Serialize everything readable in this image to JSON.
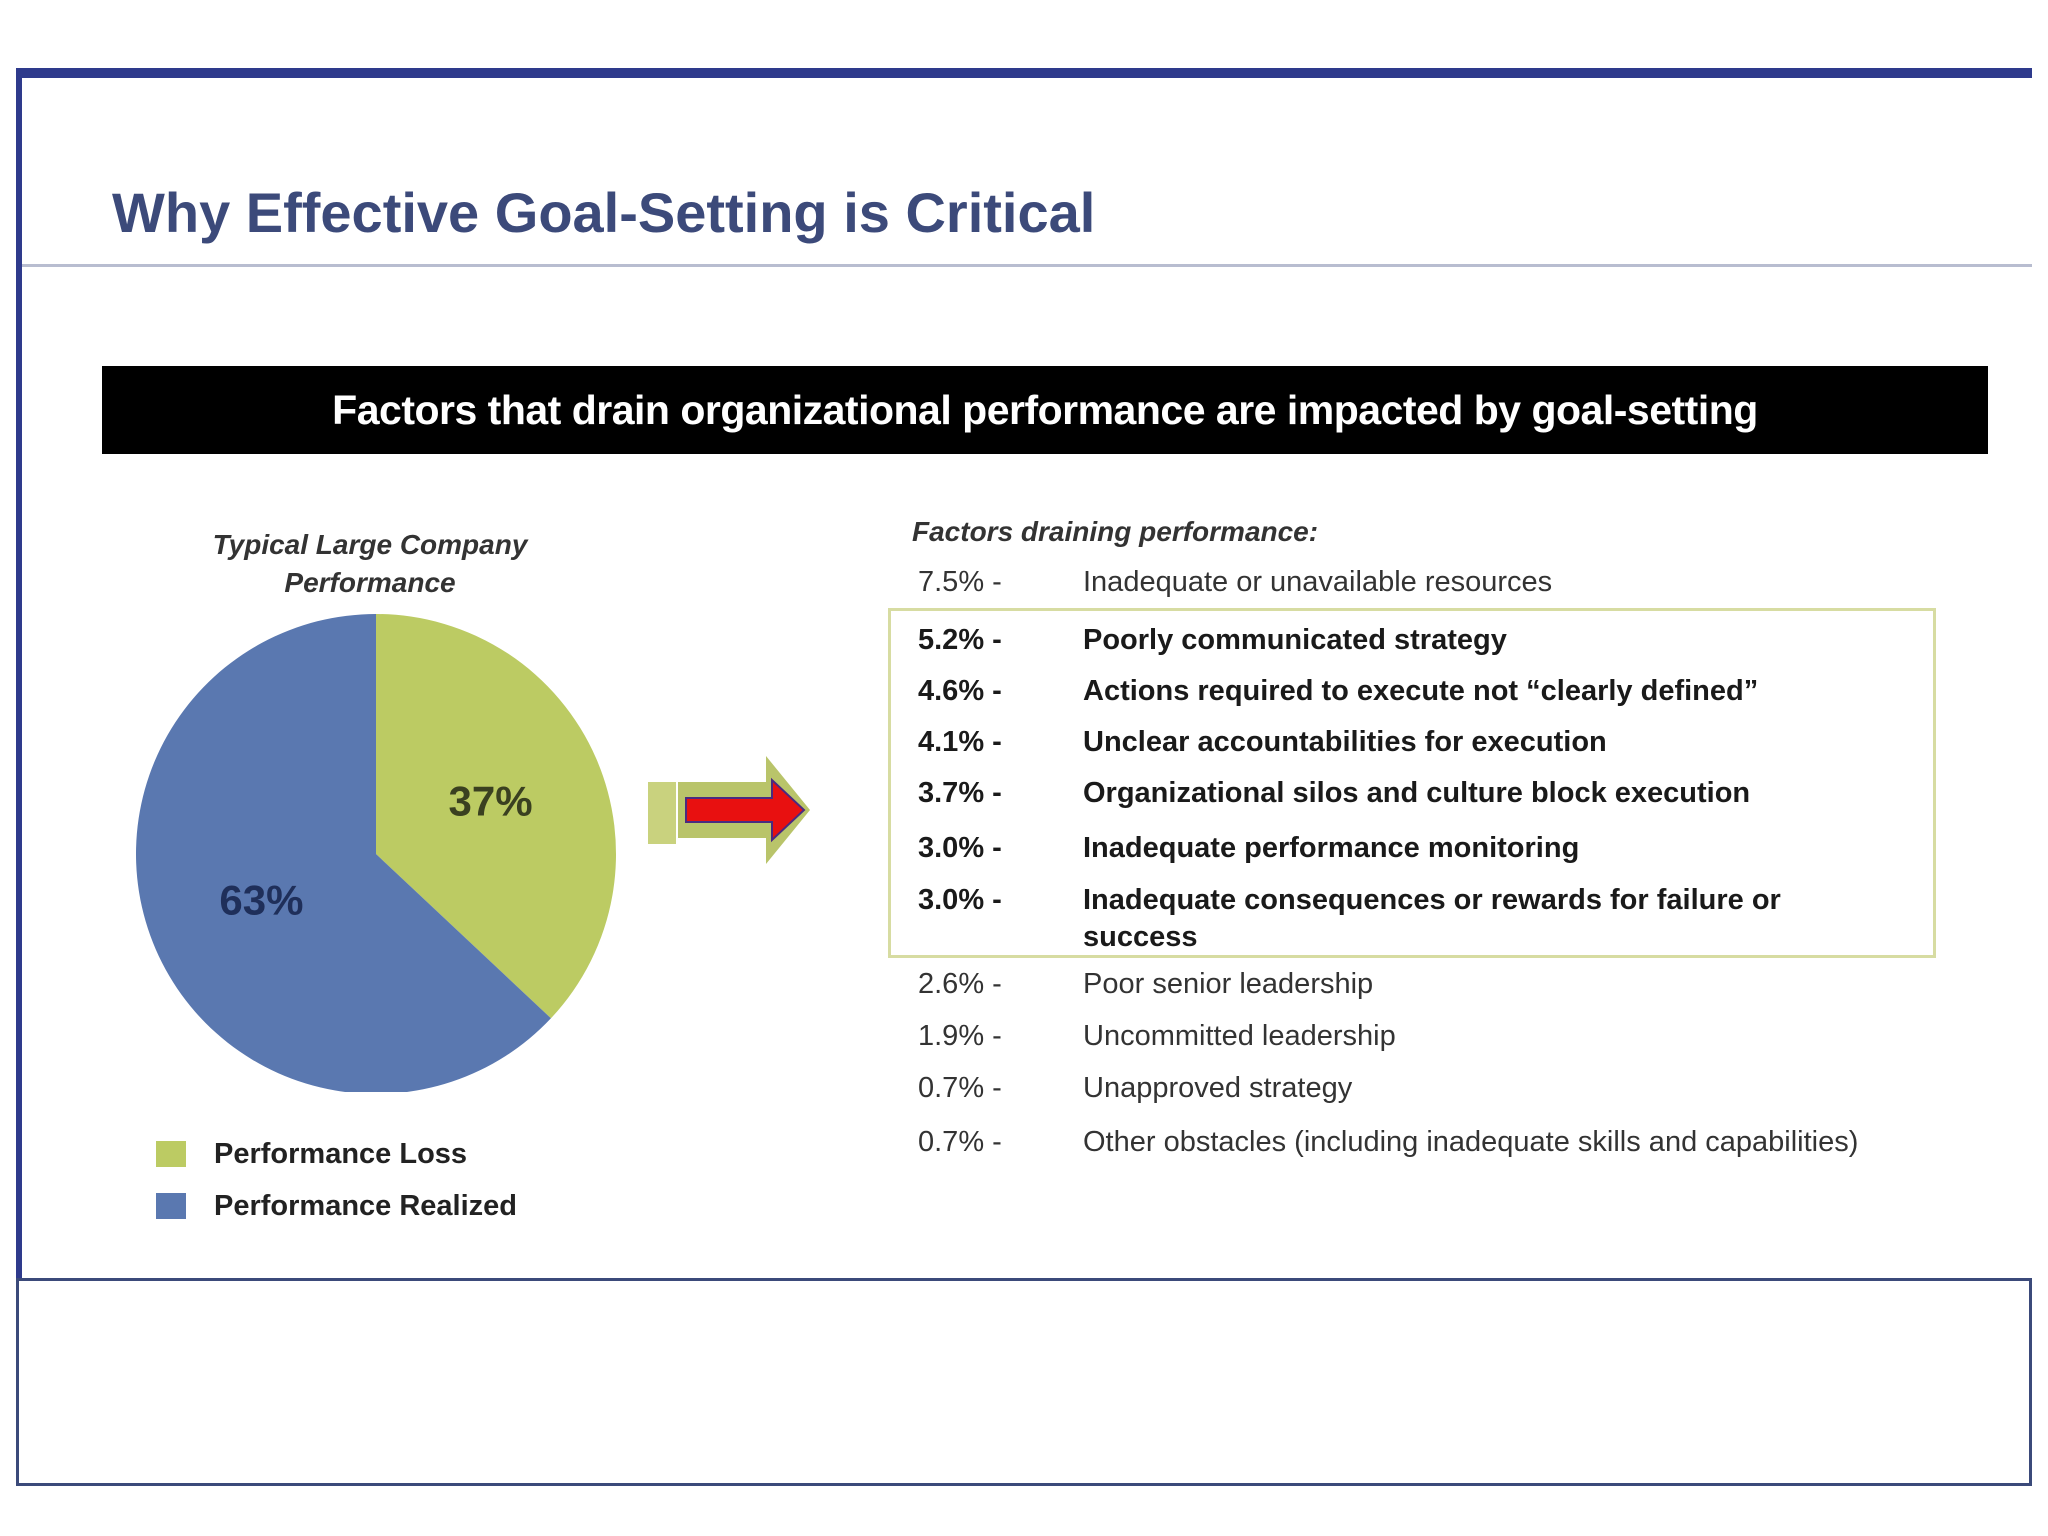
{
  "slide": {
    "title": "Why Effective Goal-Setting is Critical",
    "banner": "Factors that drain organizational performance are impacted by goal-setting",
    "frame_color": "#2e3a8c"
  },
  "chart_data": {
    "type": "pie",
    "title": "Typical Large Company Performance",
    "title_lines": [
      "Typical Large Company",
      "Performance"
    ],
    "slices": [
      {
        "label": "Performance Loss",
        "value": 37,
        "display": "37%",
        "color": "#bccb63"
      },
      {
        "label": "Performance Realized",
        "value": 63,
        "display": "63%",
        "color": "#5a78b0"
      }
    ],
    "legend_position": "bottom-left"
  },
  "factors": {
    "header": "Factors draining performance:",
    "items": [
      {
        "pct": "7.5% -",
        "text": "Inadequate or unavailable resources",
        "highlighted": false
      },
      {
        "pct": "5.2% -",
        "text": "Poorly communicated strategy",
        "highlighted": true
      },
      {
        "pct": "4.6% -",
        "text": "Actions required to execute not “clearly defined”",
        "highlighted": true
      },
      {
        "pct": "4.1% -",
        "text": "Unclear accountabilities for execution",
        "highlighted": true
      },
      {
        "pct": "3.7% -",
        "text": "Organizational silos and culture block execution",
        "highlighted": true
      },
      {
        "pct": "3.0% -",
        "text": "Inadequate performance monitoring",
        "highlighted": true
      },
      {
        "pct": "3.0% -",
        "text": "Inadequate consequences or rewards for failure or success",
        "highlighted": true
      },
      {
        "pct": "2.6% -",
        "text": "Poor senior leadership",
        "highlighted": false
      },
      {
        "pct": "1.9% -",
        "text": "Uncommitted leadership",
        "highlighted": false
      },
      {
        "pct": "0.7% -",
        "text": "Unapproved strategy",
        "highlighted": false
      },
      {
        "pct": "0.7% -",
        "text": "Other obstacles (including inadequate skills and capabilities)",
        "highlighted": false
      }
    ]
  },
  "arrow": {
    "colors": {
      "outer": "#b9c46a",
      "inner": "#e81010"
    }
  }
}
